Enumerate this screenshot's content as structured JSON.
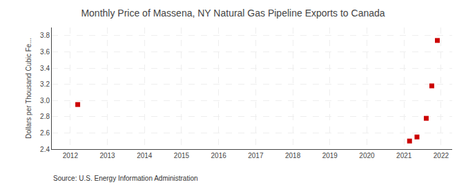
{
  "chart_data": {
    "type": "scatter",
    "title": "Monthly Price of Massena, NY Natural Gas Pipeline Exports to Canada",
    "y_label": "Dollars per Thousand Cubic Fe...",
    "annotations": [
      "Source: U.S. Energy Information Administration"
    ],
    "x": [
      2012.2,
      2021.15,
      2021.35,
      2021.6,
      2021.75,
      2021.9
    ],
    "values": [
      2.95,
      2.5,
      2.55,
      2.78,
      3.18,
      3.74
    ],
    "color": "#cc0000",
    "marker": "square",
    "xlim": [
      2011.5,
      2022.3
    ],
    "ylim": [
      2.4,
      3.9
    ],
    "xticks": [
      2012,
      2013,
      2014,
      2015,
      2016,
      2017,
      2018,
      2019,
      2020,
      2021,
      2022
    ],
    "yticks": [
      2.4,
      2.6,
      2.8,
      {
        "value": 3.0,
        "label": "3.0"
      },
      3.2,
      3.4,
      3.6,
      3.8
    ],
    "grid": true
  }
}
